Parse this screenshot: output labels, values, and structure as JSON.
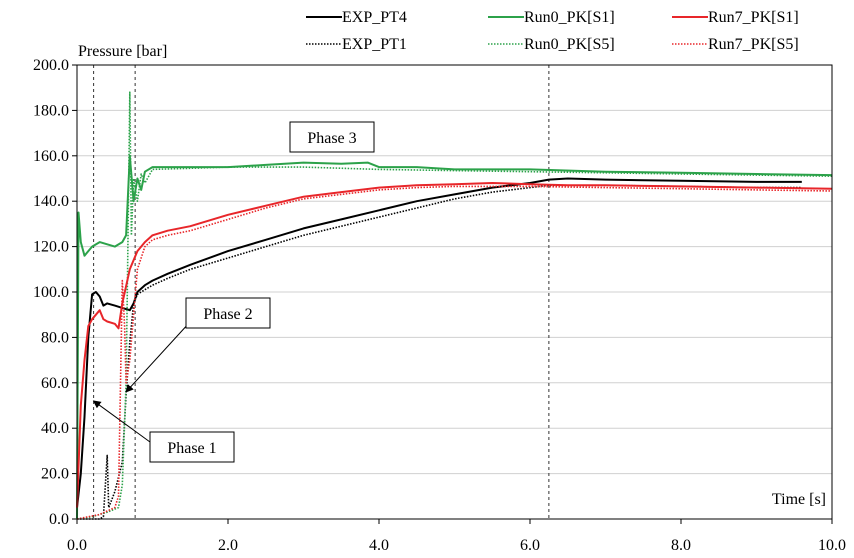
{
  "chart_data": {
    "type": "line",
    "ylabel": "Pressure [bar]",
    "xlabel": "Time [s]",
    "xlim": [
      0,
      10
    ],
    "ylim": [
      0,
      200
    ],
    "x_ticks": [
      "0.0",
      "2.0",
      "4.0",
      "6.0",
      "8.0",
      "10.0"
    ],
    "y_ticks": [
      "0.0",
      "20.0",
      "40.0",
      "60.0",
      "80.0",
      "100.0",
      "120.0",
      "140.0",
      "160.0",
      "180.0",
      "200.0"
    ],
    "grid": "horizontal",
    "legend_position": "top",
    "vlines": [
      0.22,
      0.77,
      6.25
    ],
    "annotations": [
      {
        "text": "Phase 1",
        "x": 0.22,
        "y": 52
      },
      {
        "text": "Phase 2",
        "x": 0.65,
        "y": 56
      },
      {
        "text": "Phase 3",
        "x": 3.0,
        "y": 160
      }
    ],
    "series": [
      {
        "name": "EXP_PT4",
        "color": "#000000",
        "dash": "solid",
        "points": [
          [
            0,
            5
          ],
          [
            0.05,
            20
          ],
          [
            0.1,
            45
          ],
          [
            0.15,
            80
          ],
          [
            0.2,
            99
          ],
          [
            0.25,
            100
          ],
          [
            0.3,
            98
          ],
          [
            0.35,
            94
          ],
          [
            0.4,
            95
          ],
          [
            0.5,
            94
          ],
          [
            0.6,
            93
          ],
          [
            0.7,
            92
          ],
          [
            0.75,
            95
          ],
          [
            0.8,
            100
          ],
          [
            0.9,
            103
          ],
          [
            1.0,
            105
          ],
          [
            1.2,
            108
          ],
          [
            1.5,
            112
          ],
          [
            2.0,
            118
          ],
          [
            2.5,
            123
          ],
          [
            3.0,
            128
          ],
          [
            3.5,
            132
          ],
          [
            4.0,
            136
          ],
          [
            4.5,
            140
          ],
          [
            5.0,
            143
          ],
          [
            5.5,
            146
          ],
          [
            6.0,
            148
          ],
          [
            6.25,
            149.5
          ],
          [
            6.5,
            150
          ],
          [
            7.0,
            149.5
          ],
          [
            8.0,
            149
          ],
          [
            9.0,
            148.5
          ],
          [
            9.6,
            148.5
          ]
        ]
      },
      {
        "name": "EXP_PT1",
        "color": "#000000",
        "dash": "dot",
        "points": [
          [
            0,
            0
          ],
          [
            0.3,
            0
          ],
          [
            0.35,
            1
          ],
          [
            0.4,
            28
          ],
          [
            0.42,
            5
          ],
          [
            0.5,
            12
          ],
          [
            0.6,
            25
          ],
          [
            0.65,
            55
          ],
          [
            0.7,
            78
          ],
          [
            0.75,
            95
          ],
          [
            0.8,
            99
          ],
          [
            0.9,
            101
          ],
          [
            1.0,
            103
          ],
          [
            1.2,
            106
          ],
          [
            1.5,
            110
          ],
          [
            2.0,
            115
          ],
          [
            2.5,
            120
          ],
          [
            3.0,
            125
          ],
          [
            3.5,
            129
          ],
          [
            4.0,
            133
          ],
          [
            4.5,
            137
          ],
          [
            5.0,
            141
          ],
          [
            5.5,
            144
          ],
          [
            6.0,
            146
          ],
          [
            6.25,
            147
          ],
          [
            7.0,
            147
          ],
          [
            8.0,
            146.5
          ],
          [
            9.0,
            146
          ],
          [
            9.6,
            146
          ]
        ]
      },
      {
        "name": "Run0_PK[S1]",
        "color": "#2ca24a",
        "dash": "solid",
        "points": [
          [
            0,
            0
          ],
          [
            0.02,
            135
          ],
          [
            0.05,
            122
          ],
          [
            0.1,
            116
          ],
          [
            0.15,
            118
          ],
          [
            0.2,
            120
          ],
          [
            0.3,
            122
          ],
          [
            0.4,
            121
          ],
          [
            0.5,
            120
          ],
          [
            0.6,
            122
          ],
          [
            0.65,
            125
          ],
          [
            0.7,
            160
          ],
          [
            0.75,
            140
          ],
          [
            0.8,
            150
          ],
          [
            0.85,
            145
          ],
          [
            0.9,
            153
          ],
          [
            1.0,
            155
          ],
          [
            1.5,
            155
          ],
          [
            2.0,
            155
          ],
          [
            2.5,
            156
          ],
          [
            3.0,
            157
          ],
          [
            3.5,
            156.5
          ],
          [
            3.85,
            157
          ],
          [
            4.0,
            155
          ],
          [
            4.5,
            155
          ],
          [
            5.0,
            154
          ],
          [
            6.0,
            154
          ],
          [
            7.0,
            153
          ],
          [
            8.0,
            152.5
          ],
          [
            9.0,
            152
          ],
          [
            10.0,
            151.5
          ]
        ]
      },
      {
        "name": "Run0_PK[S5]",
        "color": "#2ca24a",
        "dash": "dot",
        "points": [
          [
            0,
            0
          ],
          [
            0.2,
            1
          ],
          [
            0.4,
            3
          ],
          [
            0.55,
            5
          ],
          [
            0.6,
            15
          ],
          [
            0.65,
            60
          ],
          [
            0.67,
            110
          ],
          [
            0.7,
            188
          ],
          [
            0.72,
            125
          ],
          [
            0.75,
            150
          ],
          [
            0.8,
            140
          ],
          [
            0.85,
            152
          ],
          [
            0.9,
            148
          ],
          [
            1.0,
            154
          ],
          [
            1.5,
            154.5
          ],
          [
            2.0,
            155
          ],
          [
            3.0,
            155
          ],
          [
            4.0,
            154
          ],
          [
            5.0,
            153.5
          ],
          [
            6.0,
            153
          ],
          [
            7.0,
            152.5
          ],
          [
            8.0,
            152
          ],
          [
            9.0,
            151.5
          ],
          [
            10.0,
            151
          ]
        ]
      },
      {
        "name": "Run7_PK[S1]",
        "color": "#e8262a",
        "dash": "solid",
        "points": [
          [
            0,
            5
          ],
          [
            0.05,
            50
          ],
          [
            0.1,
            70
          ],
          [
            0.15,
            85
          ],
          [
            0.2,
            88
          ],
          [
            0.3,
            92
          ],
          [
            0.35,
            88
          ],
          [
            0.4,
            87
          ],
          [
            0.5,
            86
          ],
          [
            0.55,
            84
          ],
          [
            0.6,
            95
          ],
          [
            0.7,
            110
          ],
          [
            0.8,
            118
          ],
          [
            0.9,
            122
          ],
          [
            1.0,
            125
          ],
          [
            1.2,
            127
          ],
          [
            1.5,
            129
          ],
          [
            2.0,
            134
          ],
          [
            2.5,
            138
          ],
          [
            3.0,
            142
          ],
          [
            3.5,
            144
          ],
          [
            4.0,
            146
          ],
          [
            4.5,
            147
          ],
          [
            5.0,
            147.5
          ],
          [
            5.5,
            148
          ],
          [
            6.0,
            147.5
          ],
          [
            6.5,
            147
          ],
          [
            7.0,
            147
          ],
          [
            8.0,
            146.5
          ],
          [
            9.0,
            146
          ],
          [
            10.0,
            145.5
          ]
        ]
      },
      {
        "name": "Run7_PK[S5]",
        "color": "#e8262a",
        "dash": "dot",
        "points": [
          [
            0,
            0
          ],
          [
            0.3,
            2
          ],
          [
            0.5,
            5
          ],
          [
            0.55,
            10
          ],
          [
            0.6,
            105
          ],
          [
            0.63,
            85
          ],
          [
            0.65,
            60
          ],
          [
            0.7,
            70
          ],
          [
            0.8,
            110
          ],
          [
            0.9,
            120
          ],
          [
            1.0,
            123
          ],
          [
            1.2,
            125
          ],
          [
            1.5,
            127
          ],
          [
            2.0,
            132
          ],
          [
            2.5,
            137
          ],
          [
            3.0,
            141
          ],
          [
            3.5,
            143
          ],
          [
            4.0,
            145
          ],
          [
            4.5,
            146
          ],
          [
            5.0,
            146.5
          ],
          [
            6.0,
            146.5
          ],
          [
            7.0,
            146
          ],
          [
            8.0,
            145.5
          ],
          [
            9.0,
            145
          ],
          [
            10.0,
            144.5
          ]
        ]
      }
    ]
  }
}
